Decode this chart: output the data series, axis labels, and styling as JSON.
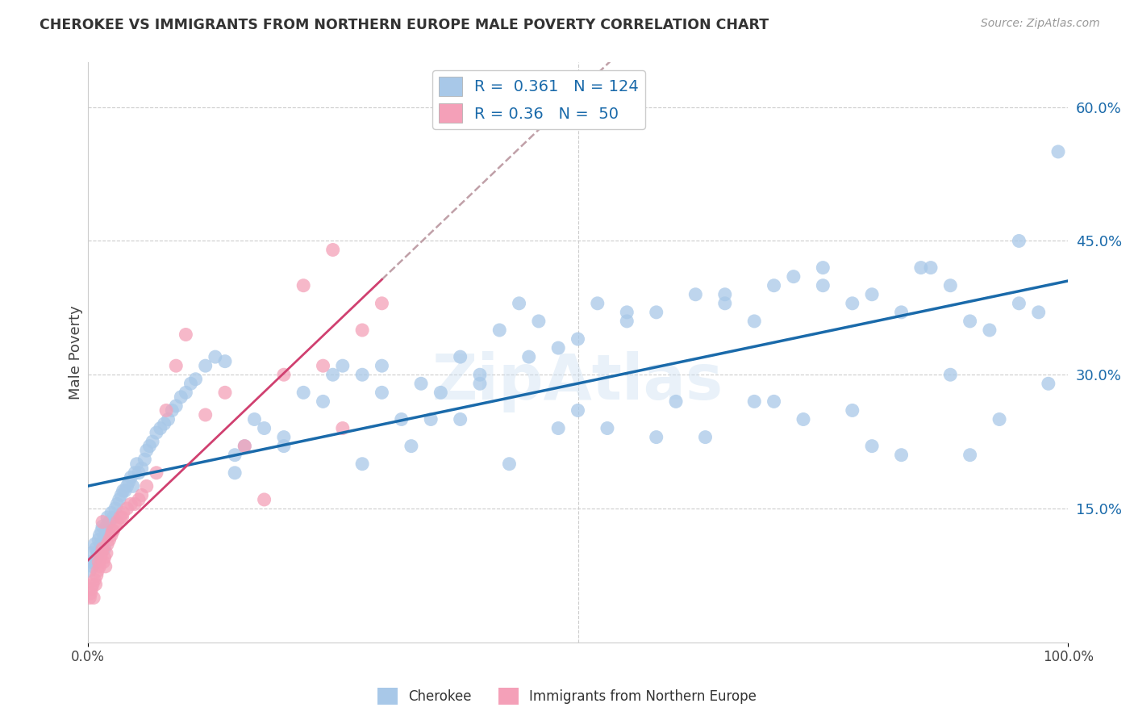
{
  "title": "CHEROKEE VS IMMIGRANTS FROM NORTHERN EUROPE MALE POVERTY CORRELATION CHART",
  "source": "Source: ZipAtlas.com",
  "ylabel": "Male Poverty",
  "xlim": [
    0,
    1
  ],
  "ylim": [
    0.0,
    0.65
  ],
  "yticks": [
    0.15,
    0.3,
    0.45,
    0.6
  ],
  "ytick_labels": [
    "15.0%",
    "30.0%",
    "45.0%",
    "60.0%"
  ],
  "xticks": [
    0.0,
    1.0
  ],
  "xtick_labels": [
    "0.0%",
    "100.0%"
  ],
  "cherokee_color": "#a8c8e8",
  "immigrant_color": "#f4a0b8",
  "trend_cherokee_color": "#1a6aaa",
  "trend_immigrant_color": "#d04070",
  "trend_immigrant_dash_color": "#c8a0a8",
  "R_cherokee": 0.361,
  "N_cherokee": 124,
  "R_immigrant": 0.36,
  "N_immigrant": 50,
  "background_color": "#ffffff",
  "grid_color": "#cccccc",
  "legend_label_1": "Cherokee",
  "legend_label_2": "Immigrants from Northern Europe",
  "cherokee_x": [
    0.002,
    0.003,
    0.004,
    0.005,
    0.006,
    0.007,
    0.008,
    0.009,
    0.01,
    0.011,
    0.012,
    0.013,
    0.014,
    0.015,
    0.016,
    0.017,
    0.018,
    0.019,
    0.02,
    0.022,
    0.024,
    0.026,
    0.028,
    0.03,
    0.032,
    0.034,
    0.036,
    0.038,
    0.04,
    0.042,
    0.044,
    0.046,
    0.048,
    0.05,
    0.052,
    0.055,
    0.058,
    0.06,
    0.063,
    0.066,
    0.07,
    0.074,
    0.078,
    0.082,
    0.086,
    0.09,
    0.095,
    0.1,
    0.105,
    0.11,
    0.12,
    0.13,
    0.14,
    0.15,
    0.16,
    0.17,
    0.18,
    0.2,
    0.22,
    0.24,
    0.26,
    0.28,
    0.3,
    0.32,
    0.34,
    0.36,
    0.38,
    0.4,
    0.42,
    0.44,
    0.46,
    0.48,
    0.5,
    0.52,
    0.55,
    0.58,
    0.62,
    0.65,
    0.68,
    0.7,
    0.72,
    0.75,
    0.78,
    0.8,
    0.83,
    0.86,
    0.88,
    0.9,
    0.92,
    0.95,
    0.97,
    0.99,
    0.25,
    0.35,
    0.45,
    0.55,
    0.65,
    0.75,
    0.85,
    0.95,
    0.3,
    0.4,
    0.5,
    0.6,
    0.7,
    0.8,
    0.9,
    0.15,
    0.2,
    0.28,
    0.38,
    0.48,
    0.58,
    0.68,
    0.78,
    0.88,
    0.98,
    0.33,
    0.43,
    0.53,
    0.63,
    0.73,
    0.83,
    0.93
  ],
  "cherokee_y": [
    0.08,
    0.09,
    0.1,
    0.085,
    0.09,
    0.11,
    0.105,
    0.095,
    0.1,
    0.115,
    0.12,
    0.11,
    0.125,
    0.13,
    0.115,
    0.105,
    0.125,
    0.13,
    0.14,
    0.135,
    0.145,
    0.14,
    0.15,
    0.155,
    0.16,
    0.165,
    0.17,
    0.17,
    0.175,
    0.18,
    0.185,
    0.175,
    0.19,
    0.2,
    0.19,
    0.195,
    0.205,
    0.215,
    0.22,
    0.225,
    0.235,
    0.24,
    0.245,
    0.25,
    0.26,
    0.265,
    0.275,
    0.28,
    0.29,
    0.295,
    0.31,
    0.32,
    0.315,
    0.21,
    0.22,
    0.25,
    0.24,
    0.23,
    0.28,
    0.27,
    0.31,
    0.3,
    0.31,
    0.25,
    0.29,
    0.28,
    0.32,
    0.3,
    0.35,
    0.38,
    0.36,
    0.33,
    0.34,
    0.38,
    0.37,
    0.37,
    0.39,
    0.39,
    0.36,
    0.4,
    0.41,
    0.42,
    0.38,
    0.39,
    0.37,
    0.42,
    0.4,
    0.36,
    0.35,
    0.38,
    0.37,
    0.55,
    0.3,
    0.25,
    0.32,
    0.36,
    0.38,
    0.4,
    0.42,
    0.45,
    0.28,
    0.29,
    0.26,
    0.27,
    0.27,
    0.22,
    0.21,
    0.19,
    0.22,
    0.2,
    0.25,
    0.24,
    0.23,
    0.27,
    0.26,
    0.3,
    0.29,
    0.22,
    0.2,
    0.24,
    0.23,
    0.25,
    0.21,
    0.25
  ],
  "immigrant_x": [
    0.002,
    0.003,
    0.004,
    0.005,
    0.006,
    0.007,
    0.008,
    0.009,
    0.01,
    0.011,
    0.012,
    0.013,
    0.014,
    0.015,
    0.016,
    0.017,
    0.018,
    0.019,
    0.02,
    0.022,
    0.024,
    0.026,
    0.028,
    0.03,
    0.033,
    0.036,
    0.04,
    0.044,
    0.048,
    0.052,
    0.06,
    0.07,
    0.08,
    0.09,
    0.1,
    0.12,
    0.14,
    0.16,
    0.18,
    0.2,
    0.22,
    0.24,
    0.26,
    0.28,
    0.3,
    0.015,
    0.025,
    0.035,
    0.055,
    0.25
  ],
  "immigrant_y": [
    0.05,
    0.055,
    0.06,
    0.065,
    0.05,
    0.07,
    0.065,
    0.075,
    0.08,
    0.09,
    0.085,
    0.095,
    0.1,
    0.105,
    0.09,
    0.095,
    0.085,
    0.1,
    0.11,
    0.115,
    0.12,
    0.125,
    0.13,
    0.135,
    0.14,
    0.145,
    0.15,
    0.155,
    0.155,
    0.16,
    0.175,
    0.19,
    0.26,
    0.31,
    0.345,
    0.255,
    0.28,
    0.22,
    0.16,
    0.3,
    0.4,
    0.31,
    0.24,
    0.35,
    0.38,
    0.135,
    0.125,
    0.14,
    0.165,
    0.44
  ],
  "trend_cherokee_intercept": 0.18,
  "trend_cherokee_slope": 0.1,
  "trend_immigrant_intercept": 0.07,
  "trend_immigrant_slope": 0.6
}
